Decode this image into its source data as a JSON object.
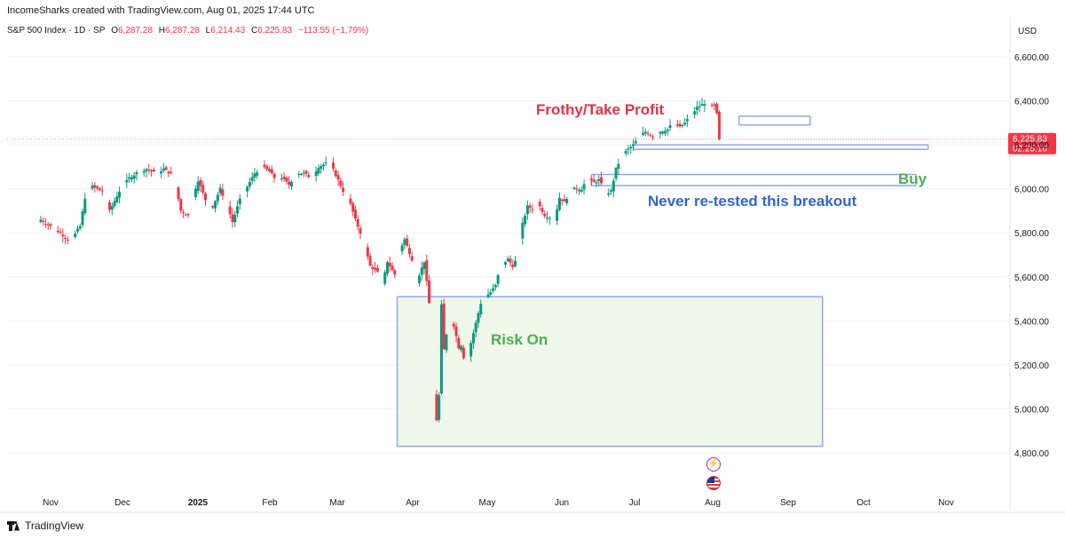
{
  "header": {
    "attribution": "IncomeSharks created with TradingView.com, Aug 01, 2025 17:44 UTC"
  },
  "legend": {
    "symbol": "S&P 500 Index · 1D · SP",
    "o_label": "O",
    "o_value": "6,287.28",
    "h_label": "H",
    "h_value": "6,287.28",
    "l_label": "L",
    "l_value": "6,214.43",
    "c_label": "C",
    "c_value": "6,225.83",
    "change": "−113.55 (−1.79%)"
  },
  "currency": "USD",
  "last_price": {
    "value": "6,225.83",
    "countdown": "02:25:10"
  },
  "footer": {
    "brand": "TradingView"
  },
  "colors": {
    "up": "#089981",
    "down": "#f23645",
    "box": "#8fa8e8",
    "risk_fill": "#eef7ea",
    "red_text": "#e0334a",
    "green_text": "#4caf50",
    "blue_text": "#2f66d0"
  },
  "chart_data": {
    "type": "candlestick",
    "symbol": "S&P 500 Index",
    "ylim": [
      4700,
      6700
    ],
    "y_ticks": [
      {
        "value": 4800,
        "label": "4,800.00"
      },
      {
        "value": 5000,
        "label": "5,000.00"
      },
      {
        "value": 5200,
        "label": "5,200.00"
      },
      {
        "value": 5400,
        "label": "5,400.00"
      },
      {
        "value": 5600,
        "label": "5,600.00"
      },
      {
        "value": 5800,
        "label": "5,800.00"
      },
      {
        "value": 6000,
        "label": "6,000.00"
      },
      {
        "value": 6200,
        "label": "6,200.00"
      },
      {
        "value": 6400,
        "label": "6,400.00"
      },
      {
        "value": 6600,
        "label": "6,600.00"
      }
    ],
    "x_ticks": [
      {
        "label": "Nov",
        "day": 4,
        "bold": false
      },
      {
        "label": "Dec",
        "day": 35,
        "bold": false
      },
      {
        "label": "2025",
        "day": 66,
        "bold": true
      },
      {
        "label": "Feb",
        "day": 97,
        "bold": false
      },
      {
        "label": "Mar",
        "day": 125,
        "bold": false
      },
      {
        "label": "Apr",
        "day": 156,
        "bold": false
      },
      {
        "label": "May",
        "day": 186,
        "bold": false
      },
      {
        "label": "Jun",
        "day": 217,
        "bold": false
      },
      {
        "label": "Jul",
        "day": 247,
        "bold": false
      },
      {
        "label": "Aug",
        "day": 278,
        "bold": false
      },
      {
        "label": "Sep",
        "day": 309,
        "bold": false
      },
      {
        "label": "Oct",
        "day": 339,
        "bold": false
      },
      {
        "label": "Nov",
        "day": 370,
        "bold": false
      }
    ],
    "close_path": [
      [
        0,
        5860
      ],
      [
        4,
        5830
      ],
      [
        8,
        5800
      ],
      [
        12,
        5760
      ],
      [
        16,
        5830
      ],
      [
        18,
        5960
      ],
      [
        21,
        6010
      ],
      [
        25,
        5990
      ],
      [
        28,
        5900
      ],
      [
        32,
        5990
      ],
      [
        36,
        6050
      ],
      [
        40,
        6080
      ],
      [
        43,
        6090
      ],
      [
        47,
        6070
      ],
      [
        50,
        6090
      ],
      [
        54,
        6060
      ],
      [
        57,
        5900
      ],
      [
        60,
        5880
      ],
      [
        62,
        5970
      ],
      [
        64,
        6040
      ],
      [
        67,
        5950
      ],
      [
        70,
        5920
      ],
      [
        73,
        6000
      ],
      [
        76,
        5920
      ],
      [
        78,
        5850
      ],
      [
        81,
        5950
      ],
      [
        83,
        5990
      ],
      [
        87,
        6070
      ],
      [
        90,
        6100
      ],
      [
        93,
        6080
      ],
      [
        95,
        6050
      ],
      [
        98,
        6050
      ],
      [
        101,
        6020
      ],
      [
        104,
        6070
      ],
      [
        107,
        6070
      ],
      [
        110,
        6050
      ],
      [
        113,
        6100
      ],
      [
        116,
        6115
      ],
      [
        118,
        6110
      ],
      [
        121,
        6040
      ],
      [
        123,
        5990
      ],
      [
        126,
        5930
      ],
      [
        128,
        5860
      ],
      [
        131,
        5770
      ],
      [
        134,
        5650
      ],
      [
        137,
        5620
      ],
      [
        139,
        5560
      ],
      [
        141,
        5670
      ],
      [
        144,
        5610
      ],
      [
        146,
        5720
      ],
      [
        148,
        5770
      ],
      [
        151,
        5680
      ],
      [
        153,
        5580
      ],
      [
        156,
        5670
      ],
      [
        158,
        5480
      ],
      [
        160,
        5070
      ],
      [
        161,
        4950
      ],
      [
        162,
        5060
      ],
      [
        163,
        5470
      ],
      [
        164,
        5270
      ],
      [
        166,
        5410
      ],
      [
        168,
        5380
      ],
      [
        170,
        5280
      ],
      [
        171,
        5290
      ],
      [
        173,
        5180
      ],
      [
        175,
        5300
      ],
      [
        177,
        5390
      ],
      [
        179,
        5480
      ],
      [
        181,
        5510
      ],
      [
        183,
        5530
      ],
      [
        185,
        5560
      ],
      [
        187,
        5650
      ],
      [
        190,
        5680
      ],
      [
        192,
        5650
      ],
      [
        194,
        5690
      ],
      [
        196,
        5840
      ],
      [
        198,
        5920
      ],
      [
        200,
        5910
      ],
      [
        202,
        5940
      ],
      [
        205,
        5880
      ],
      [
        207,
        5870
      ],
      [
        209,
        5860
      ],
      [
        211,
        5960
      ],
      [
        213,
        5940
      ],
      [
        215,
        5980
      ],
      [
        217,
        6000
      ],
      [
        220,
        6000
      ],
      [
        222,
        6040
      ],
      [
        225,
        6030
      ],
      [
        227,
        6040
      ],
      [
        230,
        5980
      ],
      [
        232,
        5990
      ],
      [
        234,
        6090
      ],
      [
        236,
        6140
      ],
      [
        238,
        6170
      ],
      [
        241,
        6200
      ],
      [
        243,
        6230
      ],
      [
        246,
        6260
      ],
      [
        249,
        6240
      ],
      [
        252,
        6260
      ],
      [
        255,
        6270
      ],
      [
        257,
        6300
      ],
      [
        260,
        6280
      ],
      [
        262,
        6300
      ],
      [
        265,
        6340
      ],
      [
        267,
        6370
      ],
      [
        270,
        6390
      ],
      [
        272,
        6370
      ],
      [
        274,
        6375
      ],
      [
        275,
        6339
      ],
      [
        276,
        6226
      ]
    ],
    "annotations": [
      {
        "text": "Frothy/Take Profit",
        "color": "#e0334a",
        "x_day": 217,
        "y": 6360
      },
      {
        "text": "Buy",
        "color": "#4caf50",
        "x_day": 361,
        "y": 6050
      },
      {
        "text": "Never re-tested this breakout",
        "color": "#2f66d0",
        "x_day": 260,
        "y": 5950
      },
      {
        "text": "Risk On",
        "color": "#4caf50",
        "x_day": 198,
        "y": 5320
      }
    ],
    "zones": [
      {
        "name": "risk-on-zone",
        "x0": 145,
        "x1": 318,
        "y0": 4830,
        "y1": 5510,
        "filled": true
      },
      {
        "name": "breakout-zone",
        "x0": 224,
        "x1": 356,
        "y0": 6015,
        "y1": 6065,
        "filled": false
      },
      {
        "name": "support-zone",
        "x0": 241,
        "x1": 361,
        "y0": 6180,
        "y1": 6200,
        "filled": false
      },
      {
        "name": "take-profit-zone",
        "x0": 284,
        "x1": 313,
        "y0": 6290,
        "y1": 6330,
        "filled": false
      }
    ],
    "last_price_line": 6225.83,
    "events": [
      "dividend-bolt",
      "us-economic-event"
    ]
  }
}
